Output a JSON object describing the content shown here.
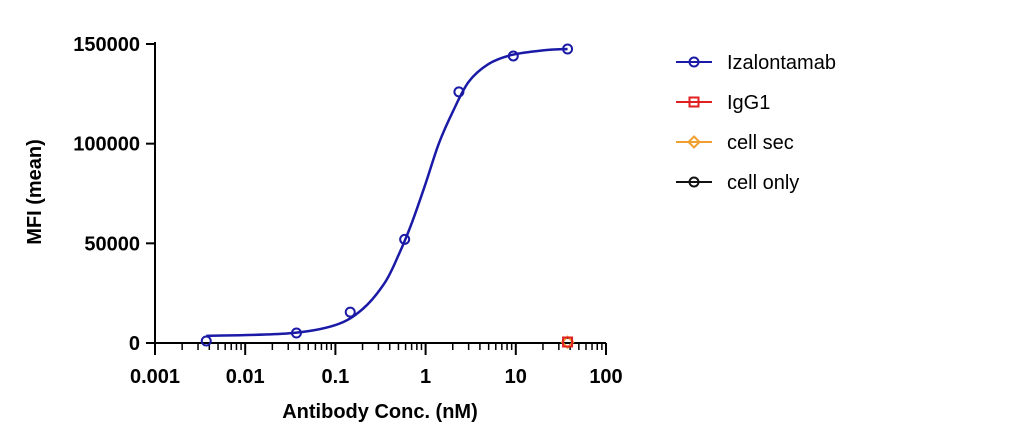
{
  "chart_data": {
    "type": "scatter",
    "title": "",
    "xlabel": "Antibody Conc. (nM)",
    "ylabel": "MFI (mean)",
    "x_scale": "log",
    "xlim": [
      0.001,
      100
    ],
    "ylim": [
      0,
      150000
    ],
    "x_ticks": [
      0.001,
      0.01,
      0.1,
      1,
      10,
      100
    ],
    "x_tick_labels": [
      "0.001",
      "0.01",
      "0.1",
      "1",
      "10",
      "100"
    ],
    "y_ticks": [
      0,
      50000,
      100000,
      150000
    ],
    "y_tick_labels": [
      "0",
      "50000",
      "100000",
      "150000"
    ],
    "grid": false,
    "legend_position": "right",
    "series": [
      {
        "name": "Izalontamab",
        "color": "#1a1aa6",
        "marker": "circle",
        "fit": "sigmoidal",
        "points": [
          {
            "x": 0.0037,
            "y": 1000
          },
          {
            "x": 0.037,
            "y": 5000
          },
          {
            "x": 0.146,
            "y": 15500
          },
          {
            "x": 0.586,
            "y": 52000
          },
          {
            "x": 2.34,
            "y": 126000
          },
          {
            "x": 9.38,
            "y": 144000
          },
          {
            "x": 37.5,
            "y": 147500
          }
        ],
        "curve": [
          {
            "x": 0.0037,
            "y": 3600
          },
          {
            "x": 0.03,
            "y": 4800
          },
          {
            "x": 0.1,
            "y": 9000
          },
          {
            "x": 0.2,
            "y": 17000
          },
          {
            "x": 0.35,
            "y": 30000
          },
          {
            "x": 0.5,
            "y": 44000
          },
          {
            "x": 0.7,
            "y": 60000
          },
          {
            "x": 1.0,
            "y": 80000
          },
          {
            "x": 1.4,
            "y": 100000
          },
          {
            "x": 2.0,
            "y": 116000
          },
          {
            "x": 3.0,
            "y": 131000
          },
          {
            "x": 5.0,
            "y": 140000
          },
          {
            "x": 9.0,
            "y": 144500
          },
          {
            "x": 20,
            "y": 146800
          },
          {
            "x": 37.5,
            "y": 147500
          }
        ]
      },
      {
        "name": "IgG1",
        "color": "#e02020",
        "marker": "square",
        "points": [
          {
            "x": 37.5,
            "y": 500
          }
        ]
      },
      {
        "name": "cell sec",
        "color": "#f0a030",
        "marker": "diamond",
        "points": [
          {
            "x": 37.5,
            "y": 400
          }
        ]
      },
      {
        "name": "cell only",
        "color": "#111111",
        "marker": "circle",
        "points": [
          {
            "x": 37.5,
            "y": 300
          }
        ]
      }
    ]
  }
}
